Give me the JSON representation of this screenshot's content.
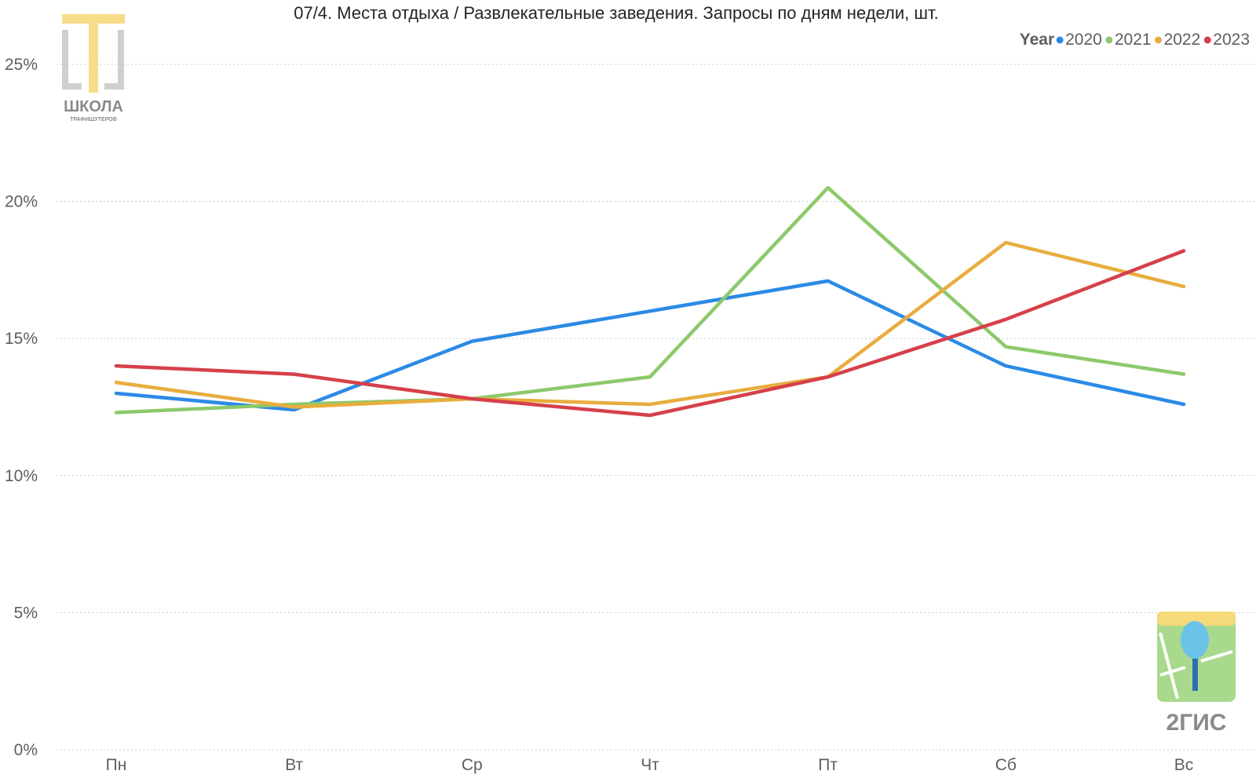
{
  "colors": {
    "2020": "#2b8ae6",
    "2021": "#8cc96c",
    "2022": "#e8ad3e",
    "2023": "#d6404a"
  },
  "logos": {
    "school_name": "ШКОЛА",
    "school_sub": "ТРАФИШУТЕРОВ",
    "brand": "2ГИС"
  },
  "chart_data": {
    "type": "line",
    "title": "07/4. Места отдыха / Развлекательные заведения. Запросы по дням недели, шт.",
    "categories": [
      "Пн",
      "Вт",
      "Ср",
      "Чт",
      "Пт",
      "Сб",
      "Вс"
    ],
    "y_ticks": [
      "0%",
      "5%",
      "10%",
      "15%",
      "20%",
      "25%"
    ],
    "ylim": [
      0,
      25
    ],
    "y_unit": "%",
    "grid": true,
    "legend": {
      "title": "Year",
      "placement": "top-right"
    },
    "series": [
      {
        "name": "2020",
        "values": [
          13.0,
          12.4,
          14.9,
          16.0,
          17.1,
          14.0,
          12.6
        ]
      },
      {
        "name": "2021",
        "values": [
          12.3,
          12.6,
          12.8,
          13.6,
          20.5,
          14.7,
          13.7
        ]
      },
      {
        "name": "2022",
        "values": [
          13.4,
          12.5,
          12.8,
          12.6,
          13.6,
          18.5,
          16.9
        ]
      },
      {
        "name": "2023",
        "values": [
          14.0,
          13.7,
          12.8,
          12.2,
          13.6,
          15.7,
          18.2
        ]
      }
    ]
  }
}
